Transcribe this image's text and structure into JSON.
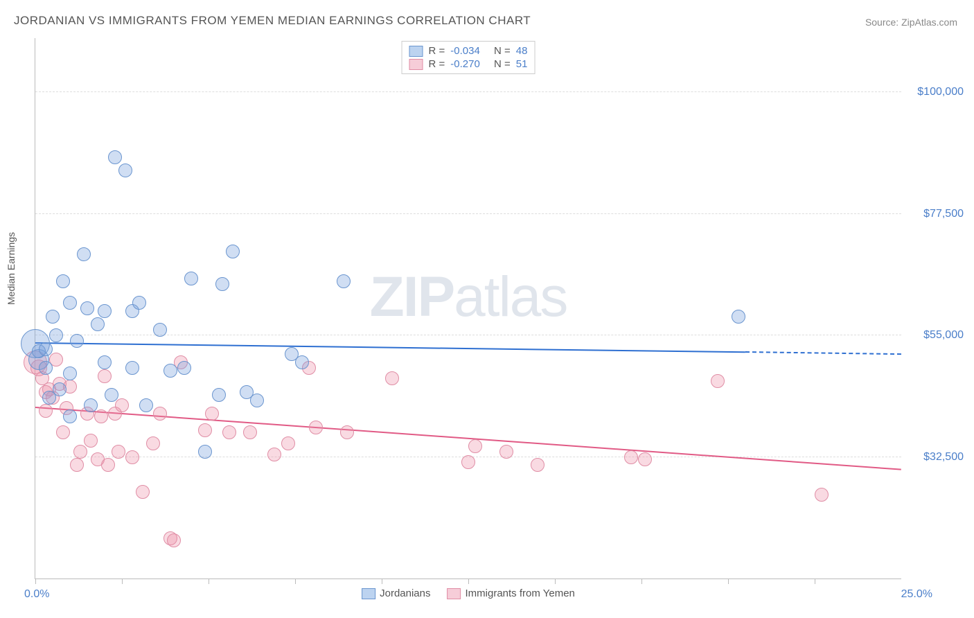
{
  "title": "JORDANIAN VS IMMIGRANTS FROM YEMEN MEDIAN EARNINGS CORRELATION CHART",
  "source": "Source: ZipAtlas.com",
  "ylabel": "Median Earnings",
  "watermark_bold": "ZIP",
  "watermark_rest": "atlas",
  "chart": {
    "type": "scatter-correlation",
    "background": "#ffffff",
    "grid_color": "#dddddd",
    "axis_color": "#bbbbbb",
    "xlim": [
      0,
      25
    ],
    "ylim": [
      10000,
      110000
    ],
    "x_ticks": [
      0,
      2.5,
      5,
      7.5,
      10,
      12.5,
      15,
      17.5,
      20,
      22.5
    ],
    "x_tick_labels": {
      "0": "0.0%",
      "25": "25.0%"
    },
    "y_gridlines": [
      32500,
      55000,
      77500,
      100000
    ],
    "y_tick_labels": {
      "32500": "$32,500",
      "55000": "$55,000",
      "77500": "$77,500",
      "100000": "$100,000"
    },
    "ylabel_fontsize": 14,
    "tick_label_color": "#4a7ec9",
    "tick_label_fontsize": 16
  },
  "series": {
    "a": {
      "label": "Jordanians",
      "fill": "rgba(120,160,220,0.35)",
      "stroke": "#6a95cf",
      "swatch_fill": "#bcd3f0",
      "swatch_stroke": "#6a95cf",
      "trend_color": "#2e6fd1",
      "trend_width": 2.5,
      "R": "-0.034",
      "N": "48",
      "marker_radius": 9,
      "trend": {
        "x1": 0,
        "y1": 53500,
        "x2_solid": 20.5,
        "y2_solid": 51800,
        "x2_dash": 25,
        "y2_dash": 51400
      },
      "points": [
        [
          0.0,
          53500,
          20
        ],
        [
          0.1,
          50500,
          14
        ],
        [
          0.1,
          52000,
          9
        ],
        [
          0.3,
          49000,
          9
        ],
        [
          0.3,
          52500,
          9
        ],
        [
          0.4,
          43500,
          9
        ],
        [
          0.5,
          58500,
          9
        ],
        [
          0.6,
          55000,
          9
        ],
        [
          0.7,
          45000,
          9
        ],
        [
          0.8,
          65000,
          9
        ],
        [
          1.0,
          48000,
          9
        ],
        [
          1.0,
          61000,
          9
        ],
        [
          1.0,
          40000,
          9
        ],
        [
          1.2,
          54000,
          9
        ],
        [
          1.4,
          70000,
          9
        ],
        [
          1.5,
          60000,
          9
        ],
        [
          1.6,
          42000,
          9
        ],
        [
          1.8,
          57000,
          9
        ],
        [
          2.0,
          59500,
          9
        ],
        [
          2.0,
          50000,
          9
        ],
        [
          2.2,
          44000,
          9
        ],
        [
          2.3,
          88000,
          9
        ],
        [
          2.6,
          85500,
          9
        ],
        [
          2.8,
          49000,
          9
        ],
        [
          2.8,
          59500,
          9
        ],
        [
          3.0,
          61000,
          9
        ],
        [
          3.2,
          42000,
          9
        ],
        [
          3.6,
          56000,
          9
        ],
        [
          3.9,
          48500,
          9
        ],
        [
          4.3,
          49000,
          9
        ],
        [
          4.5,
          65500,
          9
        ],
        [
          4.9,
          33500,
          9
        ],
        [
          5.3,
          44000,
          9
        ],
        [
          5.4,
          64500,
          9
        ],
        [
          5.7,
          70500,
          9
        ],
        [
          6.1,
          44500,
          9
        ],
        [
          6.4,
          43000,
          9
        ],
        [
          7.4,
          51500,
          9
        ],
        [
          7.7,
          50000,
          9
        ],
        [
          8.9,
          65000,
          9
        ],
        [
          20.3,
          58500,
          9
        ]
      ]
    },
    "b": {
      "label": "Immigrants from Yemen",
      "fill": "rgba(235,140,165,0.32)",
      "stroke": "#e08da5",
      "swatch_fill": "#f6cdd8",
      "swatch_stroke": "#e08da5",
      "trend_color": "#e15a85",
      "trend_width": 2.5,
      "R": "-0.270",
      "N": "51",
      "marker_radius": 9,
      "trend": {
        "x1": 0,
        "y1": 41500,
        "x2_solid": 25,
        "y2_solid": 30000
      },
      "points": [
        [
          0.0,
          50000,
          16
        ],
        [
          0.1,
          49000,
          11
        ],
        [
          0.2,
          47000,
          9
        ],
        [
          0.3,
          44500,
          9
        ],
        [
          0.3,
          41000,
          9
        ],
        [
          0.4,
          45000,
          9
        ],
        [
          0.5,
          43500,
          9
        ],
        [
          0.6,
          50500,
          9
        ],
        [
          0.7,
          46000,
          9
        ],
        [
          0.8,
          37000,
          9
        ],
        [
          0.9,
          41500,
          9
        ],
        [
          1.0,
          45500,
          9
        ],
        [
          1.2,
          31000,
          9
        ],
        [
          1.3,
          33500,
          9
        ],
        [
          1.5,
          40500,
          9
        ],
        [
          1.6,
          35500,
          9
        ],
        [
          1.8,
          32000,
          9
        ],
        [
          1.9,
          40000,
          9
        ],
        [
          2.0,
          47500,
          9
        ],
        [
          2.1,
          31000,
          9
        ],
        [
          2.3,
          40500,
          9
        ],
        [
          2.4,
          33500,
          9
        ],
        [
          2.5,
          42000,
          9
        ],
        [
          2.8,
          32500,
          9
        ],
        [
          3.1,
          26000,
          9
        ],
        [
          3.4,
          35000,
          9
        ],
        [
          3.6,
          40500,
          9
        ],
        [
          3.9,
          17500,
          9
        ],
        [
          4.0,
          17000,
          9
        ],
        [
          4.2,
          50000,
          9
        ],
        [
          4.9,
          37500,
          9
        ],
        [
          5.1,
          40500,
          9
        ],
        [
          5.6,
          37000,
          9
        ],
        [
          6.2,
          37000,
          9
        ],
        [
          6.9,
          33000,
          9
        ],
        [
          7.3,
          35000,
          9
        ],
        [
          7.9,
          49000,
          9
        ],
        [
          8.1,
          38000,
          9
        ],
        [
          9.0,
          37000,
          9
        ],
        [
          10.3,
          47000,
          9
        ],
        [
          12.5,
          31500,
          9
        ],
        [
          12.7,
          34500,
          9
        ],
        [
          13.6,
          33500,
          9
        ],
        [
          14.5,
          31000,
          9
        ],
        [
          17.2,
          32500,
          9
        ],
        [
          17.6,
          32000,
          9
        ],
        [
          19.7,
          46500,
          9
        ],
        [
          22.7,
          25500,
          9
        ]
      ]
    }
  },
  "corr_legend": {
    "R_label": "R =",
    "N_label": "N ="
  }
}
